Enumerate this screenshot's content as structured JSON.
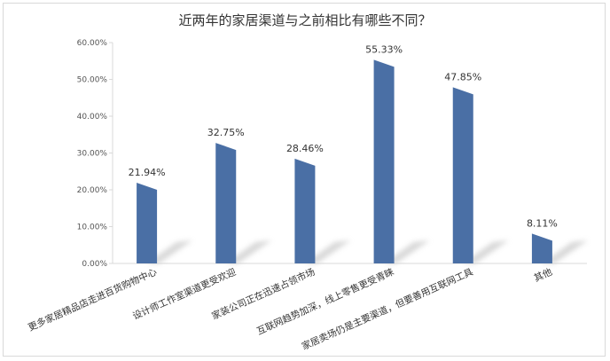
{
  "chart_data": {
    "type": "bar",
    "title": "近两年的家居渠道与之前相比有哪些不同？",
    "categories": [
      "更多家居精品店走进百货购物中心",
      "设计师工作室渠道更受欢迎",
      "家装公司正在迅速占领市场",
      "互联网趋势加深，线上零售更受青睐",
      "家居卖场仍是主要渠道，但要善用互联网工具",
      "其他"
    ],
    "values": [
      21.94,
      32.75,
      28.46,
      55.33,
      47.85,
      8.11
    ],
    "value_labels": [
      "21.94%",
      "32.75%",
      "28.46%",
      "55.33%",
      "47.85%",
      "8.11%"
    ],
    "yticks": [
      "0.00%",
      "10.00%",
      "20.00%",
      "30.00%",
      "40.00%",
      "50.00%",
      "60.00%"
    ],
    "ylim": [
      0,
      60
    ],
    "grid": false,
    "legend": "none",
    "colors": {
      "bar": "#4a6fa5",
      "bar_top": "#6f8fc0",
      "bar_side": "#3a5d8f",
      "shadow": "#c8c8c8",
      "axis": "#d9d9d9",
      "text": "#333333"
    }
  }
}
